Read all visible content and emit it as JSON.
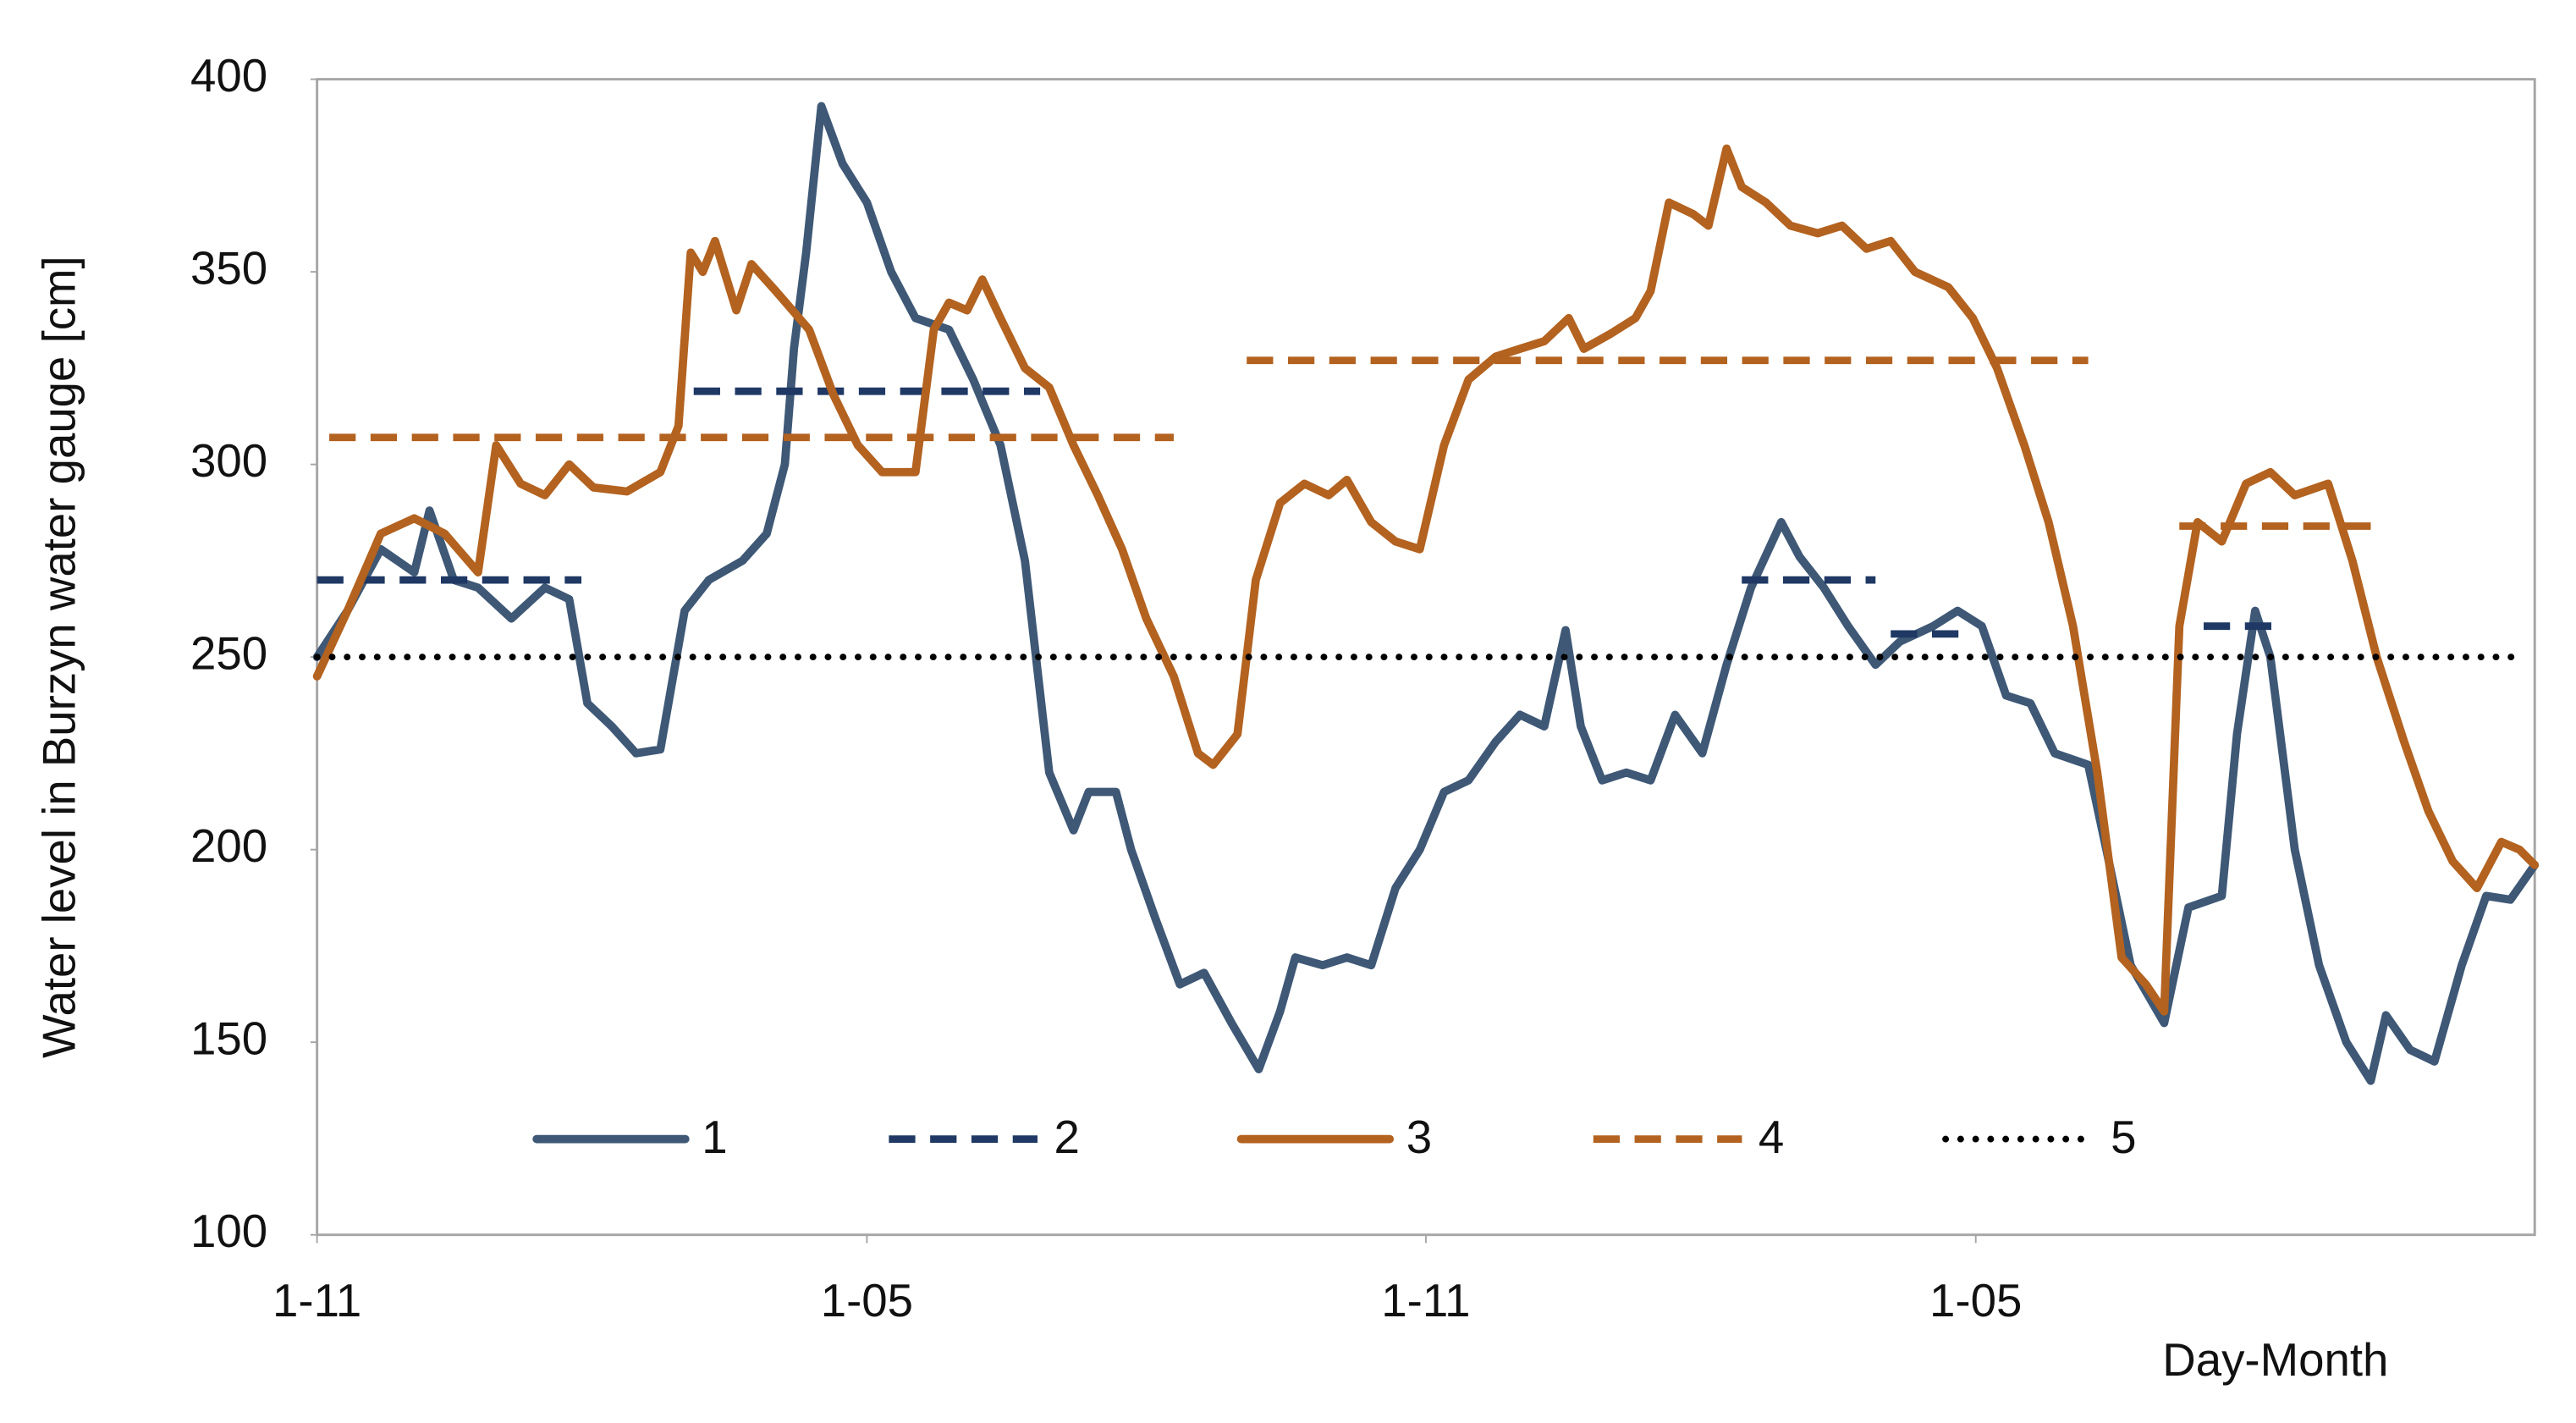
{
  "chart_data": {
    "type": "line",
    "y_label": "Water level in Burzyn water gauge [cm]",
    "x_label": "Day-Month",
    "xlim": [
      0,
      730
    ],
    "xticks": [
      {
        "value": 0,
        "label": "1-11"
      },
      {
        "value": 181,
        "label": "1-05"
      },
      {
        "value": 365,
        "label": "1-11"
      },
      {
        "value": 546,
        "label": "1-05"
      }
    ],
    "ylim": [
      100,
      400
    ],
    "yticks": [
      100,
      150,
      200,
      250,
      300,
      350,
      400
    ],
    "grid": false,
    "legend": "bottom",
    "series": [
      {
        "name": "1",
        "color": "#3e5876",
        "dash": "solid",
        "x": [
          0,
          10,
          21,
          32,
          37,
          45,
          53,
          64,
          75,
          83,
          89,
          97,
          105,
          113,
          121,
          129,
          140,
          148,
          154,
          157,
          161,
          166,
          173,
          181,
          189,
          197,
          208,
          216,
          225,
          233,
          241,
          249,
          254,
          263,
          268,
          276,
          284,
          292,
          301,
          310,
          317,
          322,
          331,
          339,
          347,
          355,
          363,
          371,
          379,
          388,
          396,
          404,
          411,
          416,
          423,
          431,
          439,
          447,
          456,
          464,
          472,
          482,
          488,
          496,
          504,
          513,
          521,
          532,
          540,
          548,
          556,
          564,
          572,
          583,
          589,
          597,
          608,
          616,
          627,
          632,
          638,
          643,
          651,
          659,
          668,
          676,
          681,
          689,
          697,
          706,
          714,
          722,
          730
        ],
        "values": [
          250,
          262,
          278,
          272,
          288,
          270,
          268,
          260,
          268,
          265,
          238,
          232,
          225,
          226,
          262,
          270,
          275,
          282,
          300,
          330,
          355,
          393,
          378,
          368,
          350,
          338,
          335,
          322,
          305,
          275,
          220,
          205,
          215,
          215,
          200,
          182,
          165,
          168,
          155,
          143,
          158,
          172,
          170,
          172,
          170,
          190,
          200,
          215,
          218,
          228,
          235,
          232,
          257,
          232,
          218,
          220,
          218,
          235,
          225,
          248,
          268,
          285,
          276,
          268,
          258,
          248,
          254,
          258,
          262,
          258,
          240,
          238,
          225,
          222,
          200,
          170,
          155,
          185,
          188,
          230,
          262,
          250,
          200,
          170,
          150,
          140,
          157,
          148,
          145,
          170,
          188,
          187,
          196
        ]
      },
      {
        "name": "2",
        "color": "#1f3864",
        "dash": "dashed",
        "x": [
          0,
          87,
          124,
          124,
          238,
          469,
          469,
          513,
          518,
          518,
          545,
          621,
          621,
          646
        ],
        "values": [
          270,
          270,
          null,
          319,
          319,
          null,
          270,
          270,
          null,
          256,
          256,
          null,
          258,
          258
        ]
      },
      {
        "name": "3",
        "color": "#b3621f",
        "dash": "solid",
        "x": [
          0,
          10,
          21,
          32,
          42,
          53,
          59,
          67,
          75,
          83,
          91,
          102,
          113,
          119,
          123,
          127,
          131,
          138,
          143,
          151,
          162,
          170,
          178,
          186,
          197,
          203,
          208,
          214,
          219,
          225,
          233,
          241,
          249,
          257,
          265,
          273,
          282,
          290,
          295,
          303,
          309,
          317,
          325,
          333,
          339,
          347,
          355,
          363,
          371,
          379,
          388,
          396,
          404,
          412,
          417,
          426,
          434,
          439,
          445,
          453,
          458,
          464,
          469,
          477,
          485,
          494,
          502,
          510,
          518,
          526,
          537,
          545,
          553,
          562,
          570,
          578,
          586,
          594,
          602,
          608,
          613,
          619,
          627,
          635,
          643,
          651,
          662,
          670,
          678,
          687,
          695,
          703,
          711,
          719,
          725,
          730
        ],
        "values": [
          245,
          262,
          282,
          286,
          282,
          272,
          305,
          295,
          292,
          300,
          294,
          293,
          298,
          310,
          355,
          350,
          358,
          340,
          352,
          345,
          335,
          318,
          305,
          298,
          298,
          335,
          342,
          340,
          348,
          338,
          325,
          320,
          305,
          292,
          278,
          260,
          245,
          225,
          222,
          230,
          270,
          290,
          295,
          292,
          296,
          285,
          280,
          278,
          305,
          322,
          328,
          330,
          332,
          338,
          330,
          334,
          338,
          345,
          368,
          365,
          362,
          382,
          372,
          368,
          362,
          360,
          362,
          356,
          358,
          350,
          346,
          338,
          325,
          305,
          285,
          258,
          220,
          172,
          165,
          158,
          258,
          285,
          280,
          295,
          298,
          292,
          295,
          275,
          250,
          228,
          210,
          197,
          190,
          202,
          200,
          196
        ]
      },
      {
        "name": "4",
        "color": "#b3621f",
        "dash": "dashed",
        "x": [
          4,
          282,
          306,
          306,
          583,
          613,
          613,
          676
        ],
        "values": [
          307,
          307,
          null,
          327,
          327,
          null,
          284,
          284
        ]
      },
      {
        "name": "5",
        "color": "#000000",
        "dash": "dotted",
        "x": [
          0,
          725
        ],
        "values": [
          250,
          250
        ]
      }
    ]
  }
}
